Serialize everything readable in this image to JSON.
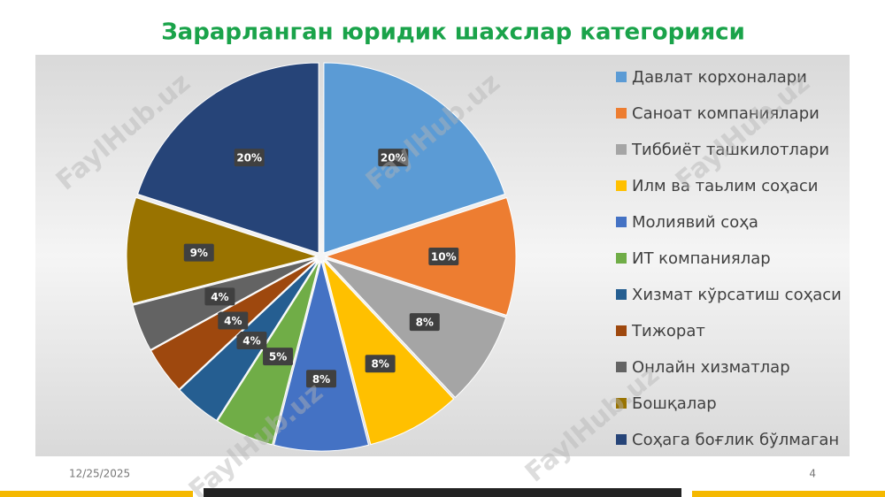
{
  "chart_data": {
    "type": "pie",
    "title": "Зарарланган юридик шахслар категорияси",
    "categories": [
      "Давлат корхоналари",
      "Саноат компаниялари",
      "Тиббиёт ташкилотлари",
      "Илм ва таьлим соҳаси",
      "Молиявий соҳа",
      "ИТ компаниялар",
      "Хизмат кўрсатиш соҳаси",
      "Тижорат",
      "Онлайн хизматлар",
      "Бошқалар",
      "Соҳага боғлик бўлмаган"
    ],
    "values": [
      20,
      10,
      8,
      8,
      8,
      5,
      4,
      4,
      4,
      9,
      20
    ],
    "value_labels": [
      "20%",
      "10%",
      "8%",
      "8%",
      "8%",
      "5%",
      "4%",
      "4%",
      "4%",
      "9%",
      "20%"
    ],
    "colors": [
      "#5b9bd5",
      "#ed7d31",
      "#a5a5a5",
      "#ffc000",
      "#4472c4",
      "#70ad47",
      "#255e91",
      "#9e480e",
      "#636363",
      "#997300",
      "#264478"
    ],
    "legend": "right"
  },
  "footer": {
    "date": "12/25/2025",
    "page": "4"
  },
  "watermark": "FaylHub.uz"
}
